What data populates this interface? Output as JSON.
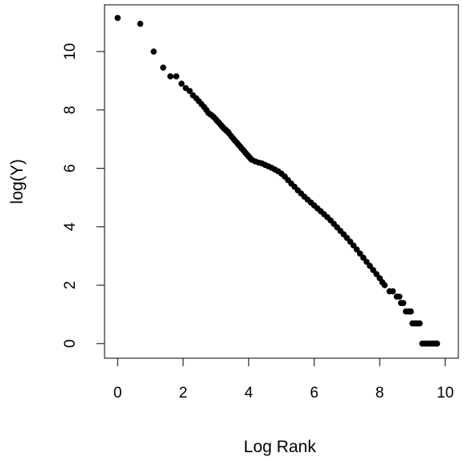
{
  "chart_data": {
    "type": "scatter",
    "title": "",
    "xlabel": "Log Rank",
    "ylabel": "log(Y)",
    "xlim": [
      -0.4,
      10.4
    ],
    "ylim": [
      -0.5,
      11.6
    ],
    "x_ticks": [
      0,
      2,
      4,
      6,
      8,
      10
    ],
    "y_ticks": [
      0,
      2,
      4,
      6,
      8,
      10
    ],
    "x_tick_labels": [
      "0",
      "2",
      "4",
      "6",
      "8",
      "10"
    ],
    "y_tick_labels": [
      "0",
      "2",
      "4",
      "6",
      "8",
      "10"
    ],
    "grid": false,
    "legend": "none",
    "marker_color": "#000000",
    "points": [
      [
        0.0,
        11.15
      ],
      [
        0.69,
        10.95
      ],
      [
        1.1,
        10.0
      ],
      [
        1.39,
        9.45
      ],
      [
        1.61,
        9.15
      ],
      [
        1.79,
        9.15
      ],
      [
        1.95,
        8.9
      ],
      [
        2.08,
        8.75
      ],
      [
        2.2,
        8.65
      ],
      [
        2.3,
        8.5
      ],
      [
        2.4,
        8.4
      ],
      [
        2.48,
        8.3
      ],
      [
        2.56,
        8.2
      ],
      [
        2.64,
        8.1
      ],
      [
        2.71,
        8.0
      ],
      [
        2.77,
        7.9
      ],
      [
        2.83,
        7.85
      ],
      [
        2.89,
        7.8
      ],
      [
        2.94,
        7.75
      ],
      [
        3.0,
        7.68
      ],
      [
        3.04,
        7.62
      ],
      [
        3.09,
        7.57
      ],
      [
        3.14,
        7.5
      ],
      [
        3.18,
        7.45
      ],
      [
        3.22,
        7.4
      ],
      [
        3.26,
        7.35
      ],
      [
        3.3,
        7.32
      ],
      [
        3.33,
        7.28
      ],
      [
        3.37,
        7.25
      ],
      [
        3.4,
        7.2
      ],
      [
        3.47,
        7.1
      ],
      [
        3.53,
        7.02
      ],
      [
        3.58,
        6.95
      ],
      [
        3.64,
        6.88
      ],
      [
        3.69,
        6.81
      ],
      [
        3.74,
        6.75
      ],
      [
        3.78,
        6.69
      ],
      [
        3.83,
        6.63
      ],
      [
        3.87,
        6.58
      ],
      [
        3.91,
        6.52
      ],
      [
        3.95,
        6.47
      ],
      [
        3.99,
        6.42
      ],
      [
        4.03,
        6.37
      ],
      [
        4.07,
        6.32
      ],
      [
        4.1,
        6.29
      ],
      [
        4.2,
        6.24
      ],
      [
        4.3,
        6.2
      ],
      [
        4.4,
        6.17
      ],
      [
        4.5,
        6.12
      ],
      [
        4.6,
        6.07
      ],
      [
        4.7,
        6.02
      ],
      [
        4.8,
        5.96
      ],
      [
        4.9,
        5.9
      ],
      [
        5.0,
        5.82
      ],
      [
        5.1,
        5.72
      ],
      [
        5.2,
        5.6
      ],
      [
        5.3,
        5.48
      ],
      [
        5.4,
        5.37
      ],
      [
        5.5,
        5.25
      ],
      [
        5.6,
        5.14
      ],
      [
        5.7,
        5.03
      ],
      [
        5.8,
        4.93
      ],
      [
        5.9,
        4.83
      ],
      [
        6.0,
        4.73
      ],
      [
        6.1,
        4.63
      ],
      [
        6.2,
        4.53
      ],
      [
        6.3,
        4.43
      ],
      [
        6.4,
        4.33
      ],
      [
        6.5,
        4.22
      ],
      [
        6.6,
        4.1
      ],
      [
        6.7,
        3.98
      ],
      [
        6.8,
        3.86
      ],
      [
        6.9,
        3.74
      ],
      [
        7.0,
        3.62
      ],
      [
        7.1,
        3.49
      ],
      [
        7.2,
        3.36
      ],
      [
        7.3,
        3.22
      ],
      [
        7.4,
        3.08
      ],
      [
        7.5,
        2.94
      ],
      [
        7.6,
        2.8
      ],
      [
        7.7,
        2.66
      ],
      [
        7.8,
        2.52
      ],
      [
        7.9,
        2.38
      ],
      [
        8.0,
        2.24
      ],
      [
        8.08,
        2.1
      ],
      [
        8.15,
        2.0
      ],
      [
        8.3,
        1.79
      ],
      [
        8.4,
        1.79
      ],
      [
        8.52,
        1.61
      ],
      [
        8.6,
        1.61
      ],
      [
        8.65,
        1.39
      ],
      [
        8.72,
        1.39
      ],
      [
        8.8,
        1.1
      ],
      [
        8.88,
        1.1
      ],
      [
        8.95,
        1.1
      ],
      [
        9.0,
        0.69
      ],
      [
        9.08,
        0.69
      ],
      [
        9.15,
        0.69
      ],
      [
        9.22,
        0.69
      ],
      [
        9.3,
        0.0
      ],
      [
        9.38,
        0.0
      ],
      [
        9.46,
        0.0
      ],
      [
        9.54,
        0.0
      ],
      [
        9.62,
        0.0
      ],
      [
        9.7,
        0.0
      ],
      [
        9.75,
        0.0
      ]
    ]
  }
}
